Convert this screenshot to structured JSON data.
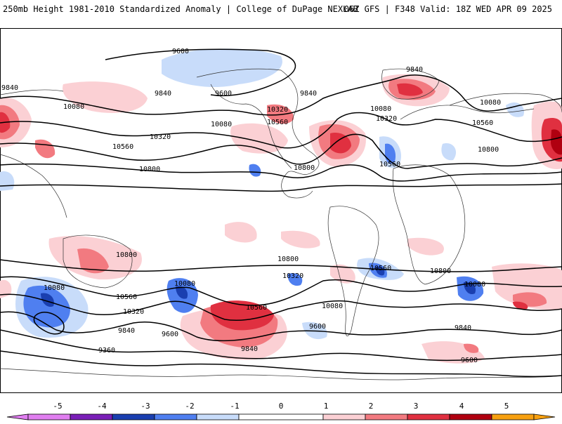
{
  "header": {
    "left_title": "250mb Height 1981-2010 Standardized Anomaly | College of DuPage NEXLAB",
    "right_title": "06Z GFS | F348 Valid: 18Z WED APR 09 2025"
  },
  "map": {
    "projection": "global cylindrical",
    "contour_interval_label_values": [
      "9360",
      "9600",
      "9840",
      "10080",
      "10320",
      "10560",
      "10800"
    ],
    "contour_labels": {
      "north": [
        "9600",
        "9600",
        "9840",
        "9840",
        "9840",
        "9840",
        "10080",
        "10080",
        "10080",
        "10080",
        "10320",
        "10320",
        "10320",
        "10560",
        "10560",
        "10560",
        "10560",
        "10800",
        "10800",
        "10800"
      ],
      "south": [
        "10800",
        "10800",
        "10800",
        "10560",
        "10560",
        "10560",
        "10320",
        "10320",
        "10080",
        "10080",
        "10080",
        "10080",
        "9840",
        "9840",
        "9840",
        "9600",
        "9600",
        "9600",
        "9360"
      ]
    },
    "colors": {
      "negative_5": "#e07ef0",
      "negative_4": "#7a1fb8",
      "negative_3": "#1a3fb0",
      "negative_2": "#4f7ff0",
      "negative_1": "#c8dcfa",
      "zero": "#ffffff",
      "positive_1": "#fbd0d4",
      "positive_2": "#f27a80",
      "positive_3": "#e03040",
      "positive_4": "#b00010",
      "positive_5": "#f7a010"
    }
  },
  "colorbar": {
    "tick_labels": [
      "-5",
      "-4",
      "-3",
      "-2",
      "-1",
      "0",
      "1",
      "2",
      "3",
      "4",
      "5"
    ]
  }
}
